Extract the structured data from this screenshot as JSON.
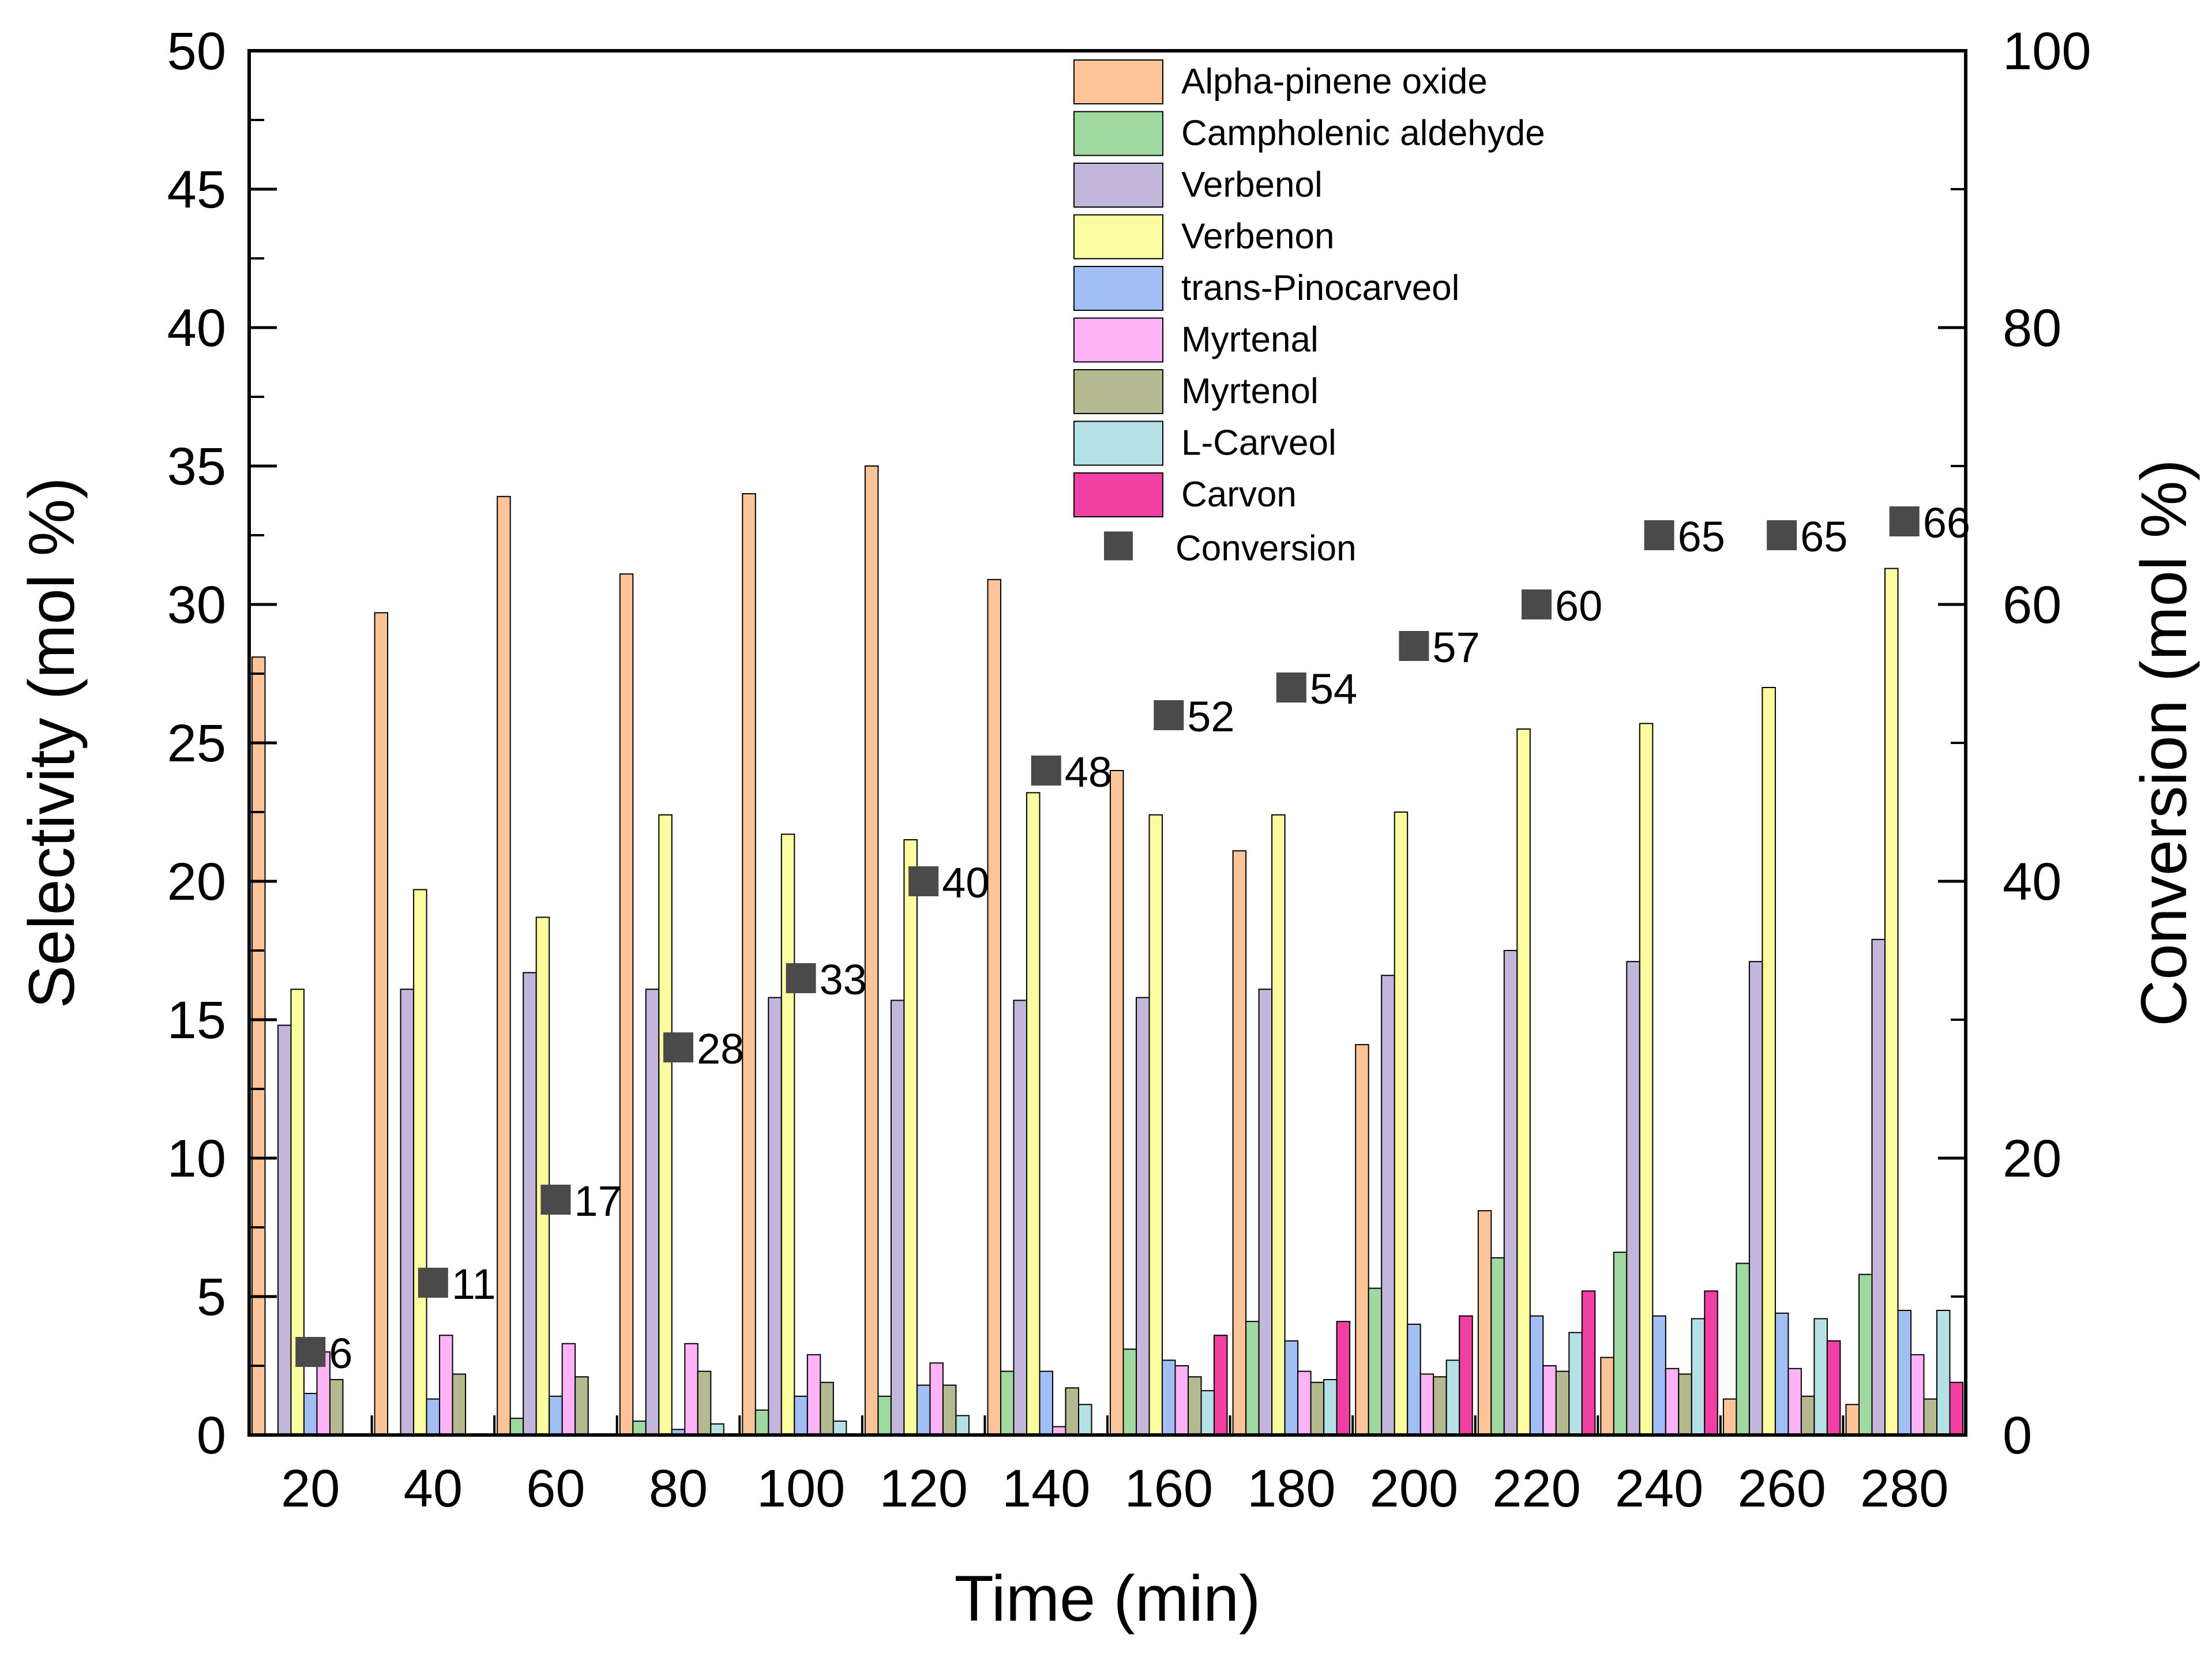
{
  "chart_data": {
    "type": "bar",
    "xlabel": "Time (min)",
    "ylabel": "Selectivity (mol %)",
    "y2label": "Conversion (mol %)",
    "ylim": [
      0,
      50
    ],
    "y2lim": [
      0,
      100
    ],
    "yticks": [
      0,
      5,
      10,
      15,
      20,
      25,
      30,
      35,
      40,
      45,
      50
    ],
    "y2ticks": [
      0,
      20,
      40,
      60,
      80,
      100
    ],
    "categories": [
      "20",
      "40",
      "60",
      "80",
      "100",
      "120",
      "140",
      "160",
      "180",
      "200",
      "220",
      "240",
      "260",
      "280"
    ],
    "legend_position": "top-center",
    "grid": false,
    "series": [
      {
        "name": "Alpha-pinene oxide",
        "color": "#FDC497",
        "values": [
          28.1,
          29.7,
          33.9,
          31.1,
          34.0,
          35.0,
          30.9,
          24.0,
          21.1,
          14.1,
          8.1,
          2.8,
          1.3,
          1.1
        ]
      },
      {
        "name": "Campholenic aldehyde",
        "color": "#9FD99F",
        "values": [
          0,
          0,
          0.6,
          0.5,
          0.9,
          1.4,
          2.3,
          3.1,
          4.1,
          5.3,
          6.4,
          6.6,
          6.2,
          5.8
        ]
      },
      {
        "name": "Verbenol",
        "color": "#C3B6DB",
        "values": [
          14.8,
          16.1,
          16.7,
          16.1,
          15.8,
          15.7,
          15.7,
          15.8,
          16.1,
          16.6,
          17.5,
          17.1,
          17.1,
          17.9
        ]
      },
      {
        "name": "Verbenon",
        "color": "#FBFB9F",
        "values": [
          16.1,
          19.7,
          18.7,
          22.4,
          21.7,
          21.5,
          23.2,
          22.4,
          22.4,
          22.5,
          25.5,
          25.7,
          27.0,
          31.3
        ]
      },
      {
        "name": "trans-Pinocarveol",
        "color": "#A2BFF5",
        "values": [
          1.5,
          1.3,
          1.4,
          0.2,
          1.4,
          1.8,
          2.3,
          2.7,
          3.4,
          4.0,
          4.3,
          4.3,
          4.4,
          4.5
        ]
      },
      {
        "name": "Myrtenal",
        "color": "#FEB3F6",
        "values": [
          3.0,
          3.6,
          3.3,
          3.3,
          2.9,
          2.6,
          0.3,
          2.5,
          2.3,
          2.2,
          2.5,
          2.4,
          2.4,
          2.9
        ]
      },
      {
        "name": "Myrtenol",
        "color": "#B5B98F",
        "values": [
          2.0,
          2.2,
          2.1,
          2.3,
          1.9,
          1.8,
          1.7,
          2.1,
          1.9,
          2.1,
          2.3,
          2.2,
          1.4,
          1.3
        ]
      },
      {
        "name": "L-Carveol",
        "color": "#B3E1E6",
        "values": [
          0,
          0,
          0,
          0.4,
          0.5,
          0.7,
          1.1,
          1.6,
          2.0,
          2.7,
          3.7,
          4.2,
          4.2,
          4.5
        ]
      },
      {
        "name": "Carvon",
        "color": "#F23FA3",
        "values": [
          0,
          0,
          0,
          0,
          0,
          0,
          0,
          3.6,
          4.1,
          4.3,
          5.2,
          5.2,
          3.4,
          1.9
        ]
      }
    ],
    "conversion": {
      "name": "Conversion",
      "color": "#4A4A4A",
      "values": [
        6,
        11,
        17,
        28,
        33,
        40,
        48,
        52,
        54,
        57,
        60,
        65,
        65,
        66
      ],
      "labels": [
        "6",
        "11",
        "17",
        "28",
        "33",
        "40",
        "48",
        "52",
        "54",
        "57",
        "60",
        "65",
        "65",
        "66"
      ]
    }
  }
}
